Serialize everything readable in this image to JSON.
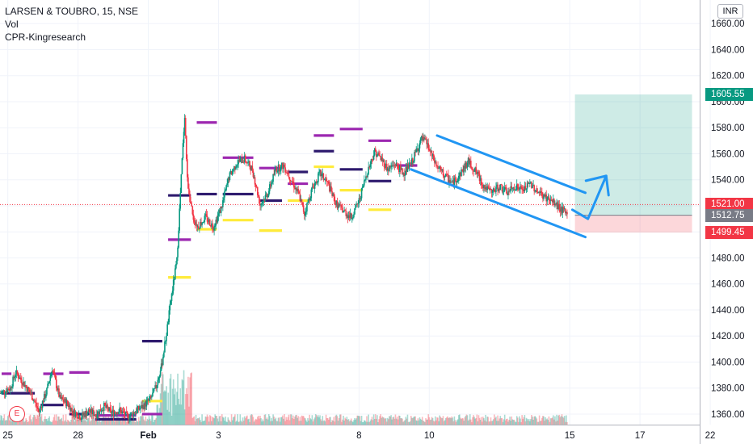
{
  "legend": {
    "symbol_line": "LARSEN & TOUBRO, 15, NSE",
    "vol_label": "Vol",
    "indicator_label": "CPR-Kingresearch"
  },
  "currency_button": "INR",
  "earnings_marker": "E",
  "price_labels": [
    {
      "value": "1605.55",
      "price": 1605.55,
      "color": "#089981"
    },
    {
      "value": "1521.00",
      "price": 1521.0,
      "color": "#f23645"
    },
    {
      "value": "1512.75",
      "price": 1512.75,
      "color": "#787b86"
    },
    {
      "value": "1499.45",
      "price": 1499.45,
      "color": "#f23645"
    }
  ],
  "chart_data": {
    "type": "candlestick",
    "symbol": "LARSEN & TOUBRO",
    "interval": "15",
    "exchange": "NSE",
    "y_axis": {
      "ticks": [
        "1660.00",
        "1640.00",
        "1620.00",
        "1600.00",
        "1580.00",
        "1560.00",
        "1540.00",
        "1520.00",
        "1500.00",
        "1480.00",
        "1460.00",
        "1440.00",
        "1420.00",
        "1400.00",
        "1380.00",
        "1360.00"
      ],
      "ylim": [
        1355,
        1668
      ]
    },
    "x_axis": {
      "ticks": [
        {
          "label": "25",
          "slot": 3
        },
        {
          "label": "28",
          "slot": 30
        },
        {
          "label": "Feb",
          "slot": 57
        },
        {
          "label": "3",
          "slot": 84
        },
        {
          "label": "8",
          "slot": 138
        },
        {
          "label": "10",
          "slot": 165
        },
        {
          "label": "15",
          "slot": 219
        },
        {
          "label": "17",
          "slot": 246
        },
        {
          "label": "22",
          "slot": 273
        }
      ]
    },
    "price_path": [
      [
        0,
        1376
      ],
      [
        4,
        1380
      ],
      [
        6,
        1392
      ],
      [
        9,
        1384
      ],
      [
        12,
        1375
      ],
      [
        15,
        1362
      ],
      [
        18,
        1378
      ],
      [
        20,
        1395
      ],
      [
        23,
        1372
      ],
      [
        26,
        1368
      ],
      [
        28,
        1362
      ],
      [
        31,
        1358
      ],
      [
        34,
        1362
      ],
      [
        37,
        1360
      ],
      [
        40,
        1366
      ],
      [
        43,
        1361
      ],
      [
        46,
        1363
      ],
      [
        49,
        1358
      ],
      [
        52,
        1362
      ],
      [
        55,
        1366
      ],
      [
        58,
        1372
      ],
      [
        60,
        1381
      ],
      [
        62,
        1396
      ],
      [
        64,
        1422
      ],
      [
        66,
        1452
      ],
      [
        68,
        1478
      ],
      [
        70,
        1555
      ],
      [
        71,
        1590
      ],
      [
        72,
        1540
      ],
      [
        74,
        1512
      ],
      [
        76,
        1504
      ],
      [
        79,
        1511
      ],
      [
        82,
        1504
      ],
      [
        85,
        1518
      ],
      [
        88,
        1542
      ],
      [
        91,
        1553
      ],
      [
        94,
        1556
      ],
      [
        97,
        1548
      ],
      [
        100,
        1521
      ],
      [
        103,
        1530
      ],
      [
        106,
        1548
      ],
      [
        109,
        1551
      ],
      [
        112,
        1540
      ],
      [
        115,
        1528
      ],
      [
        117,
        1514
      ],
      [
        120,
        1533
      ],
      [
        123,
        1545
      ],
      [
        126,
        1537
      ],
      [
        129,
        1522
      ],
      [
        132,
        1516
      ],
      [
        135,
        1511
      ],
      [
        138,
        1524
      ],
      [
        141,
        1545
      ],
      [
        144,
        1562
      ],
      [
        147,
        1555
      ],
      [
        149,
        1548
      ],
      [
        152,
        1552
      ],
      [
        155,
        1545
      ],
      [
        158,
        1552
      ],
      [
        160,
        1562
      ],
      [
        162,
        1571
      ],
      [
        164,
        1568
      ],
      [
        166,
        1558
      ],
      [
        168,
        1550
      ],
      [
        171,
        1543
      ],
      [
        174,
        1537
      ],
      [
        177,
        1545
      ],
      [
        180,
        1554
      ],
      [
        183,
        1546
      ],
      [
        186,
        1535
      ],
      [
        189,
        1530
      ],
      [
        192,
        1535
      ],
      [
        195,
        1530
      ],
      [
        198,
        1535
      ],
      [
        201,
        1532
      ],
      [
        204,
        1537
      ],
      [
        207,
        1530
      ],
      [
        210,
        1526
      ],
      [
        213,
        1522
      ],
      [
        216,
        1517
      ],
      [
        218,
        1513
      ]
    ],
    "volume_note": "volume histogram along the bottom",
    "cpr_levels": [
      {
        "color": "#9c27b0",
        "from": 0,
        "to": 5,
        "price": 1391
      },
      {
        "color": "#9c27b0",
        "from": 16,
        "to": 25,
        "price": 1391
      },
      {
        "color": "#9c27b0",
        "from": 26,
        "to": 35,
        "price": 1392
      },
      {
        "color": "#9c27b0",
        "from": 36,
        "to": 53,
        "price": 1359
      },
      {
        "color": "#9c27b0",
        "from": 54,
        "to": 63,
        "price": 1360
      },
      {
        "color": "#9c27b0",
        "from": 64,
        "to": 74,
        "price": 1494
      },
      {
        "color": "#9c27b0",
        "from": 75,
        "to": 84,
        "price": 1584
      },
      {
        "color": "#9c27b0",
        "from": 85,
        "to": 98,
        "price": 1557
      },
      {
        "color": "#9c27b0",
        "from": 99,
        "to": 109,
        "price": 1549
      },
      {
        "color": "#9c27b0",
        "from": 110,
        "to": 119,
        "price": 1537
      },
      {
        "color": "#9c27b0",
        "from": 120,
        "to": 129,
        "price": 1574
      },
      {
        "color": "#9c27b0",
        "from": 130,
        "to": 140,
        "price": 1579
      },
      {
        "color": "#9c27b0",
        "from": 141,
        "to": 151,
        "price": 1570
      },
      {
        "color": "#9c27b0",
        "from": 152,
        "to": 161,
        "price": 1551
      },
      {
        "color": "#2e1a6e",
        "from": 0,
        "to": 14,
        "price": 1376
      },
      {
        "color": "#2e1a6e",
        "from": 15,
        "to": 25,
        "price": 1367
      },
      {
        "color": "#2e1a6e",
        "from": 26,
        "to": 35,
        "price": 1360
      },
      {
        "color": "#2e1a6e",
        "from": 36,
        "to": 53,
        "price": 1356
      },
      {
        "color": "#2e1a6e",
        "from": 54,
        "to": 63,
        "price": 1416
      },
      {
        "color": "#2e1a6e",
        "from": 64,
        "to": 74,
        "price": 1528
      },
      {
        "color": "#2e1a6e",
        "from": 75,
        "to": 84,
        "price": 1529
      },
      {
        "color": "#2e1a6e",
        "from": 85,
        "to": 98,
        "price": 1529
      },
      {
        "color": "#2e1a6e",
        "from": 99,
        "to": 109,
        "price": 1524
      },
      {
        "color": "#2e1a6e",
        "from": 110,
        "to": 119,
        "price": 1546
      },
      {
        "color": "#2e1a6e",
        "from": 120,
        "to": 129,
        "price": 1562
      },
      {
        "color": "#2e1a6e",
        "from": 130,
        "to": 140,
        "price": 1548
      },
      {
        "color": "#2e1a6e",
        "from": 141,
        "to": 151,
        "price": 1539
      },
      {
        "color": "#ffeb3b",
        "from": 54,
        "to": 63,
        "price": 1370
      },
      {
        "color": "#ffeb3b",
        "from": 64,
        "to": 74,
        "price": 1465
      },
      {
        "color": "#ffeb3b",
        "from": 75,
        "to": 84,
        "price": 1502
      },
      {
        "color": "#ffeb3b",
        "from": 85,
        "to": 98,
        "price": 1509
      },
      {
        "color": "#ffeb3b",
        "from": 99,
        "to": 109,
        "price": 1501
      },
      {
        "color": "#ffeb3b",
        "from": 110,
        "to": 119,
        "price": 1524
      },
      {
        "color": "#ffeb3b",
        "from": 120,
        "to": 129,
        "price": 1550
      },
      {
        "color": "#ffeb3b",
        "from": 130,
        "to": 140,
        "price": 1532
      },
      {
        "color": "#ffeb3b",
        "from": 141,
        "to": 151,
        "price": 1517
      }
    ],
    "channel_lines": [
      {
        "from": [
          168,
          1574
        ],
        "to": [
          225,
          1530
        ]
      },
      {
        "from": [
          158,
          1548
        ],
        "to": [
          225,
          1496
        ]
      }
    ],
    "projection_arrow": [
      [
        220,
        1517
      ],
      [
        226,
        1510
      ],
      [
        233,
        1543
      ]
    ],
    "long_position": {
      "from_slot": 221,
      "to_slot": 266,
      "entry": 1512.75,
      "target": 1605.55,
      "stop": 1499.45
    },
    "current_price": 1521.0
  }
}
